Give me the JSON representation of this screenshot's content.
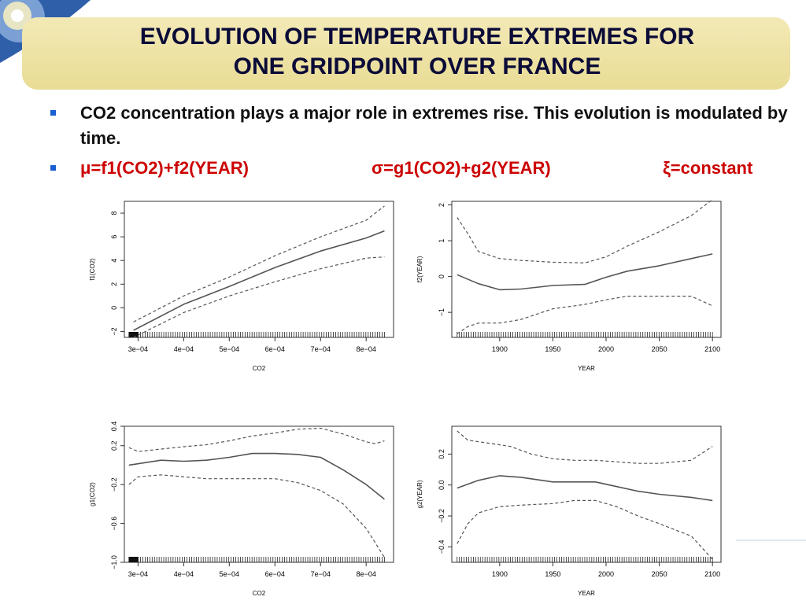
{
  "slide": {
    "title_line1": "EVOLUTION OF TEMPERATURE EXTREMES FOR",
    "title_line2": "ONE GRIDPOINT OVER FRANCE",
    "bullet1": "CO2 concentration plays a major role in extremes rise. This evolution is modulated by time.",
    "formula_mu": "μ=f1(CO2)+f2(YEAR)",
    "formula_sigma": "σ=g1(CO2)+g2(YEAR)",
    "formula_xi": "ξ=constant",
    "colors": {
      "title": "#0b0b38",
      "title_band": "#efe4a8",
      "bullet_marker": "#1b5fd0",
      "formula": "#cc0000"
    }
  },
  "chart_data": [
    {
      "type": "line",
      "xlabel": "CO2",
      "ylabel": "f1(CO2)",
      "xlim": [
        0.00027,
        0.00086
      ],
      "ylim": [
        -2.5,
        9
      ],
      "xticks": [
        0.0003,
        0.0004,
        0.0005,
        0.0006,
        0.0007,
        0.0008
      ],
      "xtick_labels": [
        "3e−04",
        "4e−04",
        "5e−04",
        "6e−04",
        "7e−04",
        "8e−04"
      ],
      "yticks": [
        -2,
        0,
        2,
        4,
        6,
        8
      ],
      "ytick_labels": [
        "−2",
        "0",
        "2",
        "4",
        "6",
        "8"
      ],
      "series": [
        {
          "role": "estimate",
          "x": [
            0.00029,
            0.0004,
            0.0005,
            0.0006,
            0.0007,
            0.0008,
            0.00084
          ],
          "y": [
            -1.9,
            0.3,
            1.8,
            3.4,
            4.8,
            5.9,
            6.5
          ]
        },
        {
          "role": "upper",
          "x": [
            0.00029,
            0.0004,
            0.0005,
            0.0006,
            0.0007,
            0.0008,
            0.00084
          ],
          "y": [
            -1.2,
            1.0,
            2.6,
            4.4,
            6.0,
            7.4,
            8.6
          ]
        },
        {
          "role": "lower",
          "x": [
            0.00029,
            0.0004,
            0.0005,
            0.0006,
            0.0007,
            0.0008,
            0.00084
          ],
          "y": [
            -2.5,
            -0.4,
            1.0,
            2.2,
            3.3,
            4.2,
            4.3
          ]
        }
      ],
      "rug": {
        "from": 0.00028,
        "to": 0.00084,
        "dense_until": 0.0003
      }
    },
    {
      "type": "line",
      "xlabel": "YEAR",
      "ylabel": "f2(YEAR)",
      "xlim": [
        1855,
        2108
      ],
      "ylim": [
        -1.7,
        2.1
      ],
      "xticks": [
        1900,
        1950,
        2000,
        2050,
        2100
      ],
      "xtick_labels": [
        "1900",
        "1950",
        "2000",
        "2050",
        "2100"
      ],
      "yticks": [
        -1,
        0,
        1,
        2
      ],
      "ytick_labels": [
        "−1",
        "0",
        "1",
        "2"
      ],
      "series": [
        {
          "role": "estimate",
          "x": [
            1860,
            1880,
            1900,
            1920,
            1950,
            1980,
            2000,
            2020,
            2050,
            2080,
            2100
          ],
          "y": [
            0.05,
            -0.2,
            -0.37,
            -0.35,
            -0.25,
            -0.22,
            -0.02,
            0.15,
            0.3,
            0.5,
            0.63
          ]
        },
        {
          "role": "upper",
          "x": [
            1860,
            1870,
            1880,
            1900,
            1920,
            1950,
            1980,
            2000,
            2020,
            2050,
            2080,
            2100
          ],
          "y": [
            1.65,
            1.2,
            0.7,
            0.5,
            0.45,
            0.4,
            0.38,
            0.55,
            0.85,
            1.25,
            1.7,
            2.15
          ]
        },
        {
          "role": "lower",
          "x": [
            1860,
            1870,
            1880,
            1900,
            1920,
            1950,
            1980,
            2000,
            2020,
            2050,
            2080,
            2100
          ],
          "y": [
            -1.6,
            -1.4,
            -1.3,
            -1.3,
            -1.2,
            -0.9,
            -0.78,
            -0.65,
            -0.55,
            -0.55,
            -0.55,
            -0.82
          ]
        }
      ],
      "rug": {
        "from": 1860,
        "to": 2100
      }
    },
    {
      "type": "line",
      "xlabel": "CO2",
      "ylabel": "g1(CO2)",
      "xlim": [
        0.00027,
        0.00086
      ],
      "ylim": [
        -1.0,
        0.4
      ],
      "xticks": [
        0.0003,
        0.0004,
        0.0005,
        0.0006,
        0.0007,
        0.0008
      ],
      "xtick_labels": [
        "3e−04",
        "4e−04",
        "5e−04",
        "6e−04",
        "7e−04",
        "8e−04"
      ],
      "yticks": [
        -1.0,
        -0.6,
        -0.2,
        0.2,
        0.4
      ],
      "ytick_labels": [
        "−1.0",
        "−0.6",
        "−0.2",
        "0.2",
        "0.4"
      ],
      "series": [
        {
          "role": "estimate",
          "x": [
            0.00028,
            0.00035,
            0.0004,
            0.00045,
            0.0005,
            0.00055,
            0.0006,
            0.00065,
            0.0007,
            0.00075,
            0.0008,
            0.00084
          ],
          "y": [
            0.0,
            0.05,
            0.04,
            0.05,
            0.08,
            0.12,
            0.12,
            0.11,
            0.08,
            -0.05,
            -0.2,
            -0.35
          ]
        },
        {
          "role": "upper",
          "x": [
            0.00028,
            0.0003,
            0.0004,
            0.00045,
            0.0005,
            0.00055,
            0.0006,
            0.00065,
            0.0007,
            0.00075,
            0.0008,
            0.00082,
            0.00084
          ],
          "y": [
            0.18,
            0.14,
            0.19,
            0.21,
            0.25,
            0.3,
            0.33,
            0.37,
            0.38,
            0.32,
            0.24,
            0.22,
            0.25
          ]
        },
        {
          "role": "lower",
          "x": [
            0.00028,
            0.0003,
            0.00035,
            0.0004,
            0.00045,
            0.0005,
            0.0006,
            0.00065,
            0.0007,
            0.00075,
            0.0008,
            0.00082,
            0.00084
          ],
          "y": [
            -0.2,
            -0.12,
            -0.1,
            -0.12,
            -0.14,
            -0.14,
            -0.14,
            -0.18,
            -0.26,
            -0.4,
            -0.65,
            -0.8,
            -0.95
          ]
        }
      ],
      "rug": {
        "from": 0.00028,
        "to": 0.00084,
        "dense_until": 0.0003
      }
    },
    {
      "type": "line",
      "xlabel": "YEAR",
      "ylabel": "g2(YEAR)",
      "xlim": [
        1855,
        2108
      ],
      "ylim": [
        -0.5,
        0.38
      ],
      "xticks": [
        1900,
        1950,
        2000,
        2050,
        2100
      ],
      "xtick_labels": [
        "1900",
        "1950",
        "2000",
        "2050",
        "2100"
      ],
      "yticks": [
        -0.4,
        -0.2,
        0.0,
        0.2
      ],
      "ytick_labels": [
        "−0.4",
        "−0.2",
        "0.0",
        "0.2"
      ],
      "series": [
        {
          "role": "estimate",
          "x": [
            1860,
            1880,
            1900,
            1920,
            1950,
            1970,
            1990,
            2010,
            2030,
            2050,
            2080,
            2100
          ],
          "y": [
            -0.02,
            0.03,
            0.06,
            0.05,
            0.02,
            0.02,
            0.02,
            -0.01,
            -0.04,
            -0.06,
            -0.08,
            -0.1
          ]
        },
        {
          "role": "upper",
          "x": [
            1860,
            1870,
            1890,
            1910,
            1930,
            1950,
            1970,
            1990,
            2010,
            2030,
            2050,
            2080,
            2100
          ],
          "y": [
            0.35,
            0.29,
            0.27,
            0.25,
            0.2,
            0.17,
            0.16,
            0.16,
            0.15,
            0.14,
            0.14,
            0.16,
            0.25
          ]
        },
        {
          "role": "lower",
          "x": [
            1860,
            1870,
            1880,
            1900,
            1920,
            1950,
            1970,
            1990,
            2010,
            2030,
            2050,
            2080,
            2100
          ],
          "y": [
            -0.38,
            -0.25,
            -0.18,
            -0.14,
            -0.13,
            -0.12,
            -0.1,
            -0.1,
            -0.14,
            -0.2,
            -0.25,
            -0.33,
            -0.48
          ]
        }
      ],
      "rug": {
        "from": 1860,
        "to": 2100
      }
    }
  ]
}
